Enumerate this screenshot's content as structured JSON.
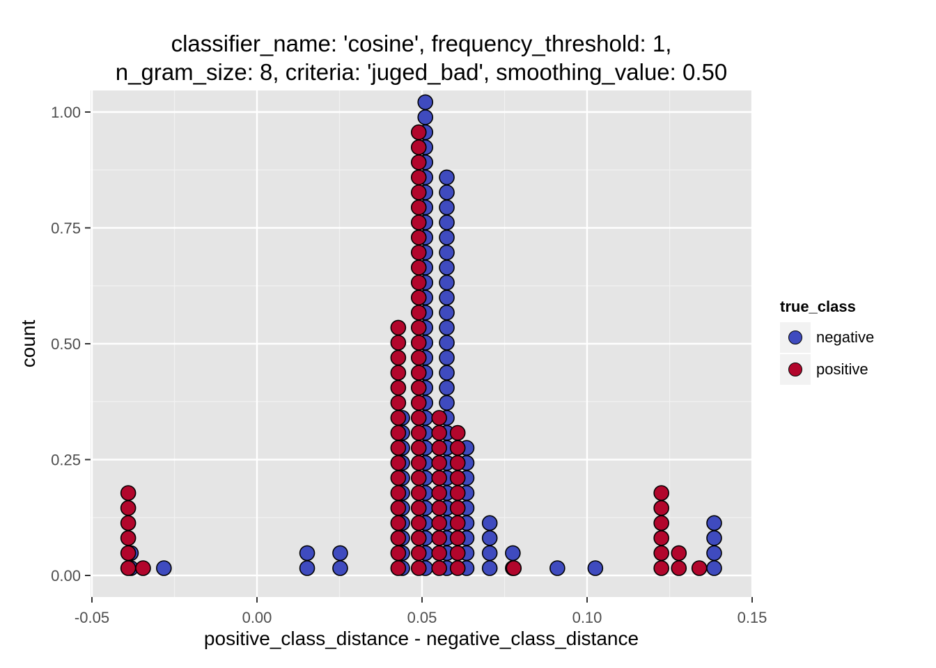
{
  "chart_data": {
    "type": "dotplot",
    "title_lines": [
      "classifier_name: 'cosine', frequency_threshold: 1,",
      "n_gram_size: 8, criteria: 'juged_bad', smoothing_value: 0.50"
    ],
    "xlabel": "positive_class_distance - negative_class_distance",
    "ylabel": "count",
    "xlim": [
      -0.05,
      0.15
    ],
    "ylim": [
      0,
      1.0
    ],
    "x_ticks": [
      -0.05,
      0.0,
      0.05,
      0.1,
      0.15
    ],
    "x_tick_labels": [
      "-0.05",
      "0.00",
      "0.05",
      "0.10",
      "0.15"
    ],
    "y_ticks": [
      0,
      0.25,
      0.5,
      0.75,
      1.0
    ],
    "y_tick_labels": [
      "0.00",
      "0.25",
      "0.50",
      "0.75",
      "1.00"
    ],
    "grid": true,
    "legend": {
      "title": "true_class",
      "position": "right",
      "entries": [
        {
          "name": "negative",
          "color": "#3f4bbf"
        },
        {
          "name": "positive",
          "color": "#b2062c"
        }
      ]
    },
    "stacks": [
      {
        "x": -0.0382,
        "negative": 2,
        "positive": 0
      },
      {
        "x": -0.039,
        "negative": 0,
        "positive": 6
      },
      {
        "x": -0.0345,
        "negative": 0,
        "positive": 1
      },
      {
        "x": -0.0282,
        "negative": 1,
        "positive": 0
      },
      {
        "x": 0.0152,
        "negative": 2,
        "positive": 0
      },
      {
        "x": 0.0252,
        "negative": 2,
        "positive": 0
      },
      {
        "x": 0.044,
        "negative": 11,
        "positive": 0
      },
      {
        "x": 0.0428,
        "negative": 0,
        "positive": 17
      },
      {
        "x": 0.051,
        "negative": 32,
        "positive": 0
      },
      {
        "x": 0.049,
        "negative": 0,
        "positive": 30
      },
      {
        "x": 0.0552,
        "negative": 0,
        "positive": 11
      },
      {
        "x": 0.0575,
        "negative": 27,
        "positive": 0
      },
      {
        "x": 0.0608,
        "negative": 0,
        "positive": 10
      },
      {
        "x": 0.0635,
        "negative": 9,
        "positive": 0
      },
      {
        "x": 0.0705,
        "negative": 4,
        "positive": 0
      },
      {
        "x": 0.0775,
        "negative": 2,
        "positive": 0
      },
      {
        "x": 0.0778,
        "negative": 0,
        "positive": 1
      },
      {
        "x": 0.091,
        "negative": 1,
        "positive": 0
      },
      {
        "x": 0.1025,
        "negative": 1,
        "positive": 0
      },
      {
        "x": 0.1225,
        "negative": 0,
        "positive": 6
      },
      {
        "x": 0.1278,
        "negative": 0,
        "positive": 2
      },
      {
        "x": 0.134,
        "negative": 0,
        "positive": 1
      },
      {
        "x": 0.1385,
        "negative": 4,
        "positive": 0
      }
    ]
  }
}
